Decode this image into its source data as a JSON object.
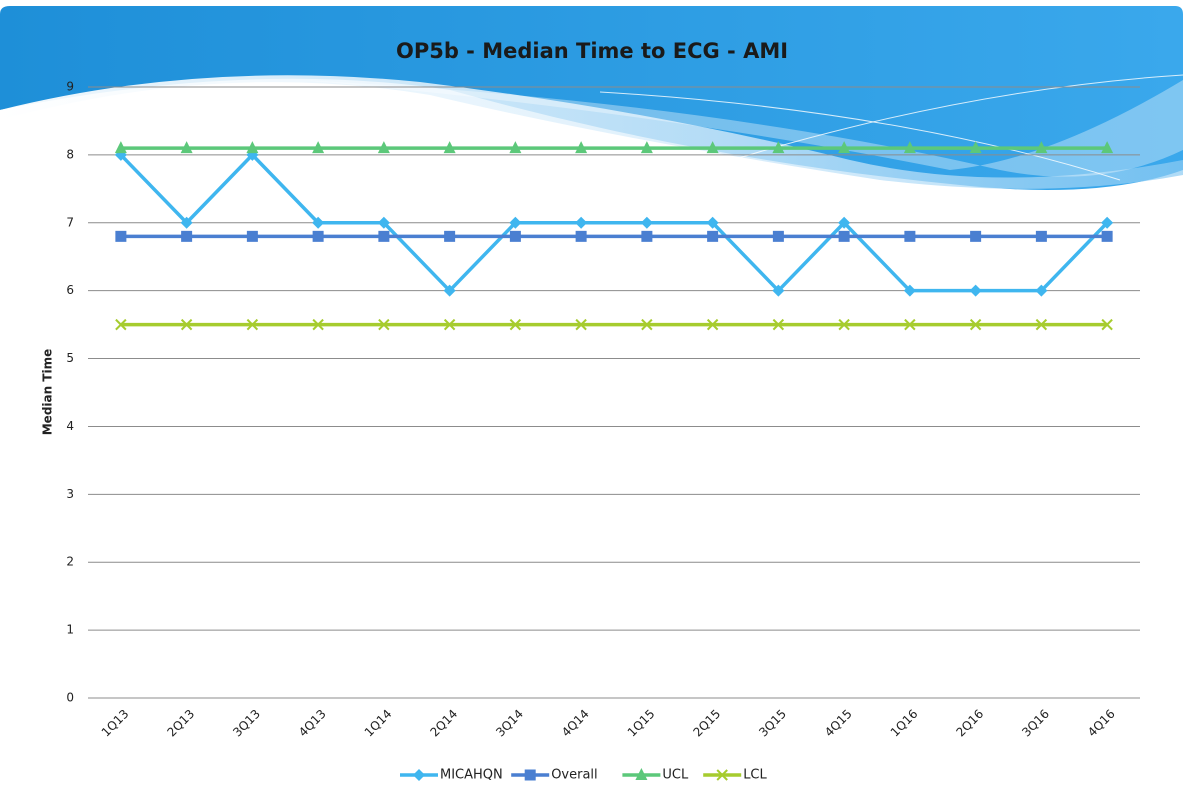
{
  "chart_data": {
    "type": "line",
    "title": "OP5b - Median Time to ECG - AMI",
    "y_label": "Median Time",
    "categories": [
      "1Q13",
      "2Q13",
      "3Q13",
      "4Q13",
      "1Q14",
      "2Q14",
      "3Q14",
      "4Q14",
      "1Q15",
      "2Q15",
      "3Q15",
      "4Q15",
      "1Q16",
      "2Q16",
      "3Q16",
      "4Q16"
    ],
    "series": [
      {
        "name": "MICAHQN",
        "color": "#3fb6ef",
        "marker": "diamond",
        "values": [
          8,
          7,
          8,
          7,
          7,
          6,
          7,
          7,
          7,
          7,
          6,
          7,
          6,
          6,
          6,
          7
        ]
      },
      {
        "name": "Overall",
        "color": "#4a7fd1",
        "marker": "square",
        "values": [
          6.8,
          6.8,
          6.8,
          6.8,
          6.8,
          6.8,
          6.8,
          6.8,
          6.8,
          6.8,
          6.8,
          6.8,
          6.8,
          6.8,
          6.8,
          6.8
        ]
      },
      {
        "name": "UCL",
        "color": "#5cc87a",
        "marker": "triangle",
        "values": [
          8.1,
          8.1,
          8.1,
          8.1,
          8.1,
          8.1,
          8.1,
          8.1,
          8.1,
          8.1,
          8.1,
          8.1,
          8.1,
          8.1,
          8.1,
          8.1
        ]
      },
      {
        "name": "LCL",
        "color": "#a6cc2e",
        "marker": "x",
        "values": [
          5.5,
          5.5,
          5.5,
          5.5,
          5.5,
          5.5,
          5.5,
          5.5,
          5.5,
          5.5,
          5.5,
          5.5,
          5.5,
          5.5,
          5.5,
          5.5
        ]
      }
    ],
    "ylim": [
      0,
      9
    ],
    "yticks": [
      0,
      1,
      2,
      3,
      4,
      5,
      6,
      7,
      8,
      9
    ],
    "grid": true,
    "legend": "bottom"
  }
}
